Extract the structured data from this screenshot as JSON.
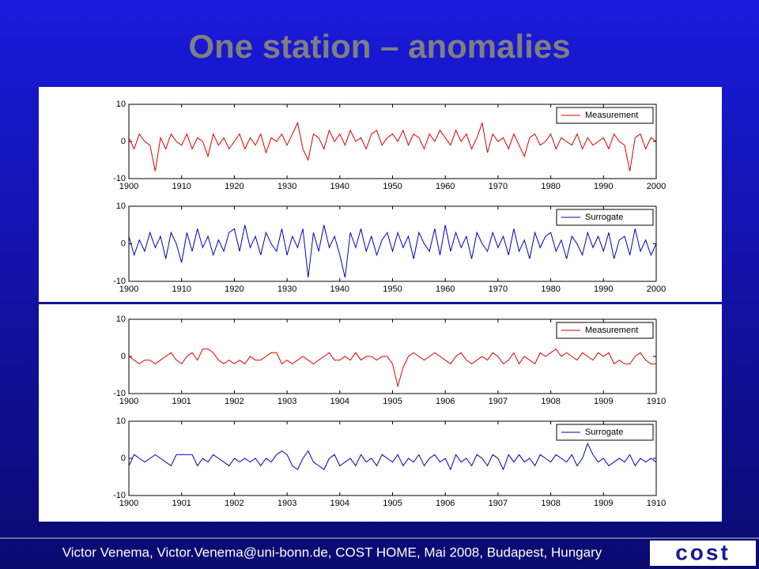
{
  "title": "One station – anomalies",
  "footer": "Victor Venema, Victor.Venema@uni-bonn.de, COST HOME, Mai 2008, Budapest, Hungary",
  "logo": "cost",
  "chart_data": [
    {
      "type": "line",
      "xlim": [
        1900,
        2000
      ],
      "ylim": [
        -10,
        10
      ],
      "xticks": [
        1900,
        1910,
        1920,
        1930,
        1940,
        1950,
        1960,
        1970,
        1980,
        1990,
        2000
      ],
      "yticks": [
        -10,
        0,
        10
      ],
      "legend": "upper right",
      "x": [
        1900,
        1901,
        1902,
        1903,
        1904,
        1905,
        1906,
        1907,
        1908,
        1909,
        1910,
        1911,
        1912,
        1913,
        1914,
        1915,
        1916,
        1917,
        1918,
        1919,
        1920,
        1921,
        1922,
        1923,
        1924,
        1925,
        1926,
        1927,
        1928,
        1929,
        1930,
        1931,
        1932,
        1933,
        1934,
        1935,
        1936,
        1937,
        1938,
        1939,
        1940,
        1941,
        1942,
        1943,
        1944,
        1945,
        1946,
        1947,
        1948,
        1949,
        1950,
        1951,
        1952,
        1953,
        1954,
        1955,
        1956,
        1957,
        1958,
        1959,
        1960,
        1961,
        1962,
        1963,
        1964,
        1965,
        1966,
        1967,
        1968,
        1969,
        1970,
        1971,
        1972,
        1973,
        1974,
        1975,
        1976,
        1977,
        1978,
        1979,
        1980,
        1981,
        1982,
        1983,
        1984,
        1985,
        1986,
        1987,
        1988,
        1989,
        1990,
        1991,
        1992,
        1993,
        1994,
        1995,
        1996,
        1997,
        1998,
        1999,
        2000
      ],
      "series": [
        {
          "name": "Measurement",
          "color": "#e00000",
          "values": [
            1,
            -2,
            2,
            0,
            -1,
            -8,
            1,
            -2,
            2,
            0,
            -1,
            2,
            -2,
            1,
            0,
            -4,
            2,
            -1,
            1,
            -2,
            0,
            2,
            -2,
            1,
            -1,
            2,
            -3,
            1,
            0,
            2,
            -1,
            2,
            5,
            -2,
            -5,
            2,
            1,
            -2,
            3,
            0,
            2,
            -1,
            3,
            0,
            1,
            -2,
            2,
            3,
            -1,
            1,
            2,
            0,
            3,
            -1,
            2,
            1,
            -2,
            2,
            0,
            3,
            1,
            -1,
            3,
            0,
            2,
            -2,
            1,
            5,
            -3,
            2,
            0,
            1,
            -2,
            2,
            -1,
            -4,
            1,
            2,
            -1,
            0,
            2,
            -2,
            1,
            0,
            -1,
            2,
            -2,
            1,
            -1,
            0,
            1,
            -2,
            2,
            0,
            -1,
            -8,
            1,
            2,
            -2,
            1,
            0
          ]
        }
      ]
    },
    {
      "type": "line",
      "xlim": [
        1900,
        2000
      ],
      "ylim": [
        -10,
        10
      ],
      "xticks": [
        1900,
        1910,
        1920,
        1930,
        1940,
        1950,
        1960,
        1970,
        1980,
        1990,
        2000
      ],
      "yticks": [
        -10,
        0,
        10
      ],
      "legend": "upper right",
      "x": [
        1900,
        1901,
        1902,
        1903,
        1904,
        1905,
        1906,
        1907,
        1908,
        1909,
        1910,
        1911,
        1912,
        1913,
        1914,
        1915,
        1916,
        1917,
        1918,
        1919,
        1920,
        1921,
        1922,
        1923,
        1924,
        1925,
        1926,
        1927,
        1928,
        1929,
        1930,
        1931,
        1932,
        1933,
        1934,
        1935,
        1936,
        1937,
        1938,
        1939,
        1940,
        1941,
        1942,
        1943,
        1944,
        1945,
        1946,
        1947,
        1948,
        1949,
        1950,
        1951,
        1952,
        1953,
        1954,
        1955,
        1956,
        1957,
        1958,
        1959,
        1960,
        1961,
        1962,
        1963,
        1964,
        1965,
        1966,
        1967,
        1968,
        1969,
        1970,
        1971,
        1972,
        1973,
        1974,
        1975,
        1976,
        1977,
        1978,
        1979,
        1980,
        1981,
        1982,
        1983,
        1984,
        1985,
        1986,
        1987,
        1988,
        1989,
        1990,
        1991,
        1992,
        1993,
        1994,
        1995,
        1996,
        1997,
        1998,
        1999,
        2000
      ],
      "series": [
        {
          "name": "Surrogate",
          "color": "#0000c0",
          "values": [
            2,
            -3,
            1,
            -2,
            3,
            -1,
            2,
            -4,
            3,
            0,
            -5,
            3,
            -2,
            4,
            -1,
            2,
            -3,
            1,
            -2,
            3,
            4,
            -2,
            5,
            -1,
            2,
            -3,
            3,
            0,
            -2,
            4,
            -3,
            2,
            -1,
            4,
            -9,
            3,
            -2,
            5,
            -1,
            2,
            -3,
            -9,
            3,
            -1,
            4,
            -2,
            2,
            -3,
            1,
            3,
            -2,
            3,
            -1,
            2,
            -4,
            3,
            0,
            -2,
            4,
            -3,
            5,
            -2,
            3,
            -1,
            2,
            -4,
            3,
            0,
            -2,
            3,
            -1,
            2,
            -3,
            4,
            -2,
            1,
            -4,
            3,
            -1,
            2,
            3,
            -2,
            1,
            -4,
            2,
            0,
            -3,
            3,
            -1,
            2,
            -2,
            3,
            -4,
            1,
            2,
            -3,
            4,
            -2,
            1,
            -3,
            0
          ]
        }
      ]
    },
    {
      "type": "line",
      "xlim": [
        1900,
        1910
      ],
      "ylim": [
        -10,
        10
      ],
      "xticks": [
        1900,
        1901,
        1902,
        1903,
        1904,
        1905,
        1906,
        1907,
        1908,
        1909,
        1910
      ],
      "yticks": [
        -10,
        0,
        10
      ],
      "legend": "upper right",
      "x": [
        1900,
        1900.1,
        1900.2,
        1900.3,
        1900.4,
        1900.5,
        1900.6,
        1900.7,
        1900.8,
        1900.9,
        1901,
        1901.1,
        1901.2,
        1901.3,
        1901.4,
        1901.5,
        1901.6,
        1901.7,
        1901.8,
        1901.9,
        1902,
        1902.1,
        1902.2,
        1902.3,
        1902.4,
        1902.5,
        1902.6,
        1902.7,
        1902.8,
        1902.9,
        1903,
        1903.1,
        1903.2,
        1903.3,
        1903.4,
        1903.5,
        1903.6,
        1903.7,
        1903.8,
        1903.9,
        1904,
        1904.1,
        1904.2,
        1904.3,
        1904.4,
        1904.5,
        1904.6,
        1904.7,
        1904.8,
        1904.9,
        1905,
        1905.1,
        1905.2,
        1905.3,
        1905.4,
        1905.5,
        1905.6,
        1905.7,
        1905.8,
        1905.9,
        1906,
        1906.1,
        1906.2,
        1906.3,
        1906.4,
        1906.5,
        1906.6,
        1906.7,
        1906.8,
        1906.9,
        1907,
        1907.1,
        1907.2,
        1907.3,
        1907.4,
        1907.5,
        1907.6,
        1907.7,
        1907.8,
        1907.9,
        1908,
        1908.1,
        1908.2,
        1908.3,
        1908.4,
        1908.5,
        1908.6,
        1908.7,
        1908.8,
        1908.9,
        1909,
        1909.1,
        1909.2,
        1909.3,
        1909.4,
        1909.5,
        1909.6,
        1909.7,
        1909.8,
        1909.9,
        1910
      ],
      "series": [
        {
          "name": "Measurement",
          "color": "#e00000",
          "values": [
            0,
            -1,
            -2,
            -1,
            -1,
            -2,
            -1,
            0,
            1,
            -1,
            -2,
            0,
            1,
            -1,
            2,
            2,
            1,
            -1,
            -2,
            -1,
            -2,
            -1,
            -2,
            0,
            -1,
            -1,
            0,
            1,
            1,
            -2,
            -1,
            -2,
            -1,
            0,
            -1,
            -2,
            -1,
            0,
            1,
            -1,
            -1,
            0,
            -1,
            1,
            -1,
            0,
            0,
            -1,
            0,
            0,
            -2,
            -8,
            -3,
            0,
            1,
            0,
            -1,
            0,
            1,
            0,
            -1,
            -2,
            0,
            1,
            -1,
            -2,
            -1,
            0,
            -1,
            1,
            0,
            -2,
            -1,
            1,
            -2,
            0,
            -1,
            -2,
            1,
            0,
            1,
            2,
            0,
            1,
            0,
            -1,
            1,
            0,
            -1,
            1,
            0,
            1,
            -2,
            -1,
            -2,
            -2,
            0,
            1,
            -1,
            -2,
            -2
          ]
        }
      ]
    },
    {
      "type": "line",
      "xlim": [
        1900,
        1910
      ],
      "ylim": [
        -10,
        10
      ],
      "xticks": [
        1900,
        1901,
        1902,
        1903,
        1904,
        1905,
        1906,
        1907,
        1908,
        1909,
        1910
      ],
      "yticks": [
        -10,
        0,
        10
      ],
      "legend": "upper right",
      "x": [
        1900,
        1900.1,
        1900.2,
        1900.3,
        1900.4,
        1900.5,
        1900.6,
        1900.7,
        1900.8,
        1900.9,
        1901,
        1901.1,
        1901.2,
        1901.3,
        1901.4,
        1901.5,
        1901.6,
        1901.7,
        1901.8,
        1901.9,
        1902,
        1902.1,
        1902.2,
        1902.3,
        1902.4,
        1902.5,
        1902.6,
        1902.7,
        1902.8,
        1902.9,
        1903,
        1903.1,
        1903.2,
        1903.3,
        1903.4,
        1903.5,
        1903.6,
        1903.7,
        1903.8,
        1903.9,
        1904,
        1904.1,
        1904.2,
        1904.3,
        1904.4,
        1904.5,
        1904.6,
        1904.7,
        1904.8,
        1904.9,
        1905,
        1905.1,
        1905.2,
        1905.3,
        1905.4,
        1905.5,
        1905.6,
        1905.7,
        1905.8,
        1905.9,
        1906,
        1906.1,
        1906.2,
        1906.3,
        1906.4,
        1906.5,
        1906.6,
        1906.7,
        1906.8,
        1906.9,
        1907,
        1907.1,
        1907.2,
        1907.3,
        1907.4,
        1907.5,
        1907.6,
        1907.7,
        1907.8,
        1907.9,
        1908,
        1908.1,
        1908.2,
        1908.3,
        1908.4,
        1908.5,
        1908.6,
        1908.7,
        1908.8,
        1908.9,
        1909,
        1909.1,
        1909.2,
        1909.3,
        1909.4,
        1909.5,
        1909.6,
        1909.7,
        1909.8,
        1909.9,
        1910
      ],
      "series": [
        {
          "name": "Surrogate",
          "color": "#0000c0",
          "values": [
            -2,
            1,
            0,
            -1,
            0,
            1,
            0,
            -1,
            -2,
            1,
            1,
            1,
            1,
            -2,
            0,
            -1,
            1,
            0,
            -1,
            -2,
            0,
            -1,
            0,
            -1,
            0,
            -2,
            0,
            -1,
            1,
            2,
            1,
            -2,
            -3,
            0,
            2,
            -1,
            -2,
            -3,
            0,
            1,
            -2,
            -1,
            0,
            -2,
            1,
            -1,
            0,
            -2,
            1,
            0,
            -1,
            1,
            -2,
            0,
            -1,
            1,
            -2,
            0,
            1,
            -1,
            0,
            -3,
            1,
            -1,
            0,
            -2,
            1,
            0,
            -2,
            1,
            0,
            -3,
            1,
            -1,
            1,
            -1,
            0,
            -2,
            1,
            0,
            -1,
            1,
            0,
            -1,
            1,
            -2,
            0,
            4,
            1,
            -1,
            0,
            -2,
            -1,
            0,
            -1,
            1,
            -2,
            0,
            -1,
            0,
            -1
          ]
        }
      ]
    }
  ]
}
